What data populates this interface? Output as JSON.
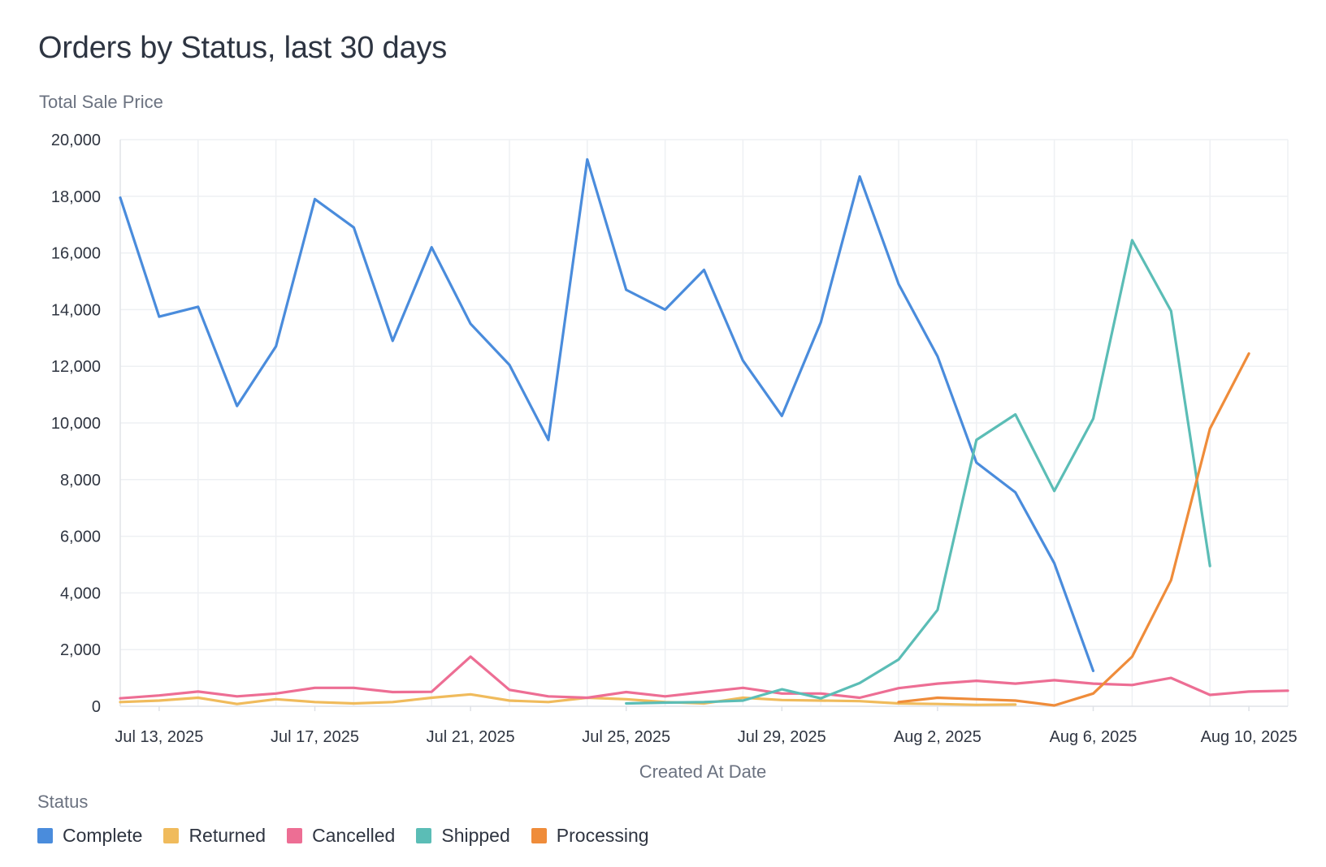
{
  "title": "Orders by Status, last 30 days",
  "legend_title": "Status",
  "chart_data": {
    "type": "line",
    "title": "Orders by Status, last 30 days",
    "ylabel": "Total Sale Price",
    "xlabel": "Created At Date",
    "ylim": [
      0,
      20000
    ],
    "yticks": [
      "0",
      "2,000",
      "4,000",
      "6,000",
      "8,000",
      "10,000",
      "12,000",
      "14,000",
      "16,000",
      "18,000",
      "20,000"
    ],
    "ytick_values": [
      0,
      2000,
      4000,
      6000,
      8000,
      10000,
      12000,
      14000,
      16000,
      18000,
      20000
    ],
    "x_dates": [
      "2025-07-12",
      "2025-07-13",
      "2025-07-14",
      "2025-07-15",
      "2025-07-16",
      "2025-07-17",
      "2025-07-18",
      "2025-07-19",
      "2025-07-20",
      "2025-07-21",
      "2025-07-22",
      "2025-07-23",
      "2025-07-24",
      "2025-07-25",
      "2025-07-26",
      "2025-07-27",
      "2025-07-28",
      "2025-07-29",
      "2025-07-30",
      "2025-07-31",
      "2025-08-01",
      "2025-08-02",
      "2025-08-03",
      "2025-08-04",
      "2025-08-05",
      "2025-08-06",
      "2025-08-07",
      "2025-08-08",
      "2025-08-09",
      "2025-08-10",
      "2025-08-11"
    ],
    "xticks": [
      {
        "date": "2025-07-13",
        "label": "Jul 13, 2025"
      },
      {
        "date": "2025-07-17",
        "label": "Jul 17, 2025"
      },
      {
        "date": "2025-07-21",
        "label": "Jul 21, 2025"
      },
      {
        "date": "2025-07-25",
        "label": "Jul 25, 2025"
      },
      {
        "date": "2025-07-29",
        "label": "Jul 29, 2025"
      },
      {
        "date": "2025-08-02",
        "label": "Aug 2, 2025"
      },
      {
        "date": "2025-08-06",
        "label": "Aug 6, 2025"
      },
      {
        "date": "2025-08-10",
        "label": "Aug 10, 2025"
      }
    ],
    "grid": true,
    "legend_position": "bottom-left",
    "series": [
      {
        "name": "Complete",
        "color": "#4a8cdc",
        "values": [
          17950,
          13750,
          14100,
          10600,
          12700,
          17900,
          16900,
          12900,
          16200,
          13500,
          12050,
          9400,
          19300,
          14700,
          14000,
          15400,
          12200,
          10250,
          13550,
          18700,
          14900,
          12350,
          8600,
          7550,
          5050,
          1250,
          null,
          null,
          null,
          null,
          null
        ]
      },
      {
        "name": "Returned",
        "color": "#f0bb5c",
        "values": [
          150,
          200,
          300,
          80,
          250,
          150,
          100,
          150,
          300,
          420,
          200,
          150,
          300,
          250,
          150,
          100,
          300,
          220,
          200,
          180,
          100,
          80,
          50,
          60,
          null,
          null,
          null,
          null,
          null,
          null,
          null
        ]
      },
      {
        "name": "Cancelled",
        "color": "#ed6e94",
        "values": [
          280,
          380,
          520,
          350,
          450,
          650,
          650,
          500,
          510,
          1750,
          580,
          350,
          300,
          500,
          350,
          500,
          650,
          450,
          450,
          300,
          640,
          800,
          900,
          800,
          920,
          800,
          750,
          1000,
          400,
          520,
          550
        ]
      },
      {
        "name": "Shipped",
        "color": "#5bbdb6",
        "values": [
          null,
          null,
          null,
          null,
          null,
          null,
          null,
          null,
          null,
          null,
          null,
          null,
          null,
          100,
          130,
          150,
          200,
          600,
          280,
          820,
          1650,
          3400,
          9400,
          10300,
          7600,
          10150,
          16450,
          13950,
          4950,
          null,
          null
        ]
      },
      {
        "name": "Processing",
        "color": "#ef8c3a",
        "values": [
          null,
          null,
          null,
          null,
          null,
          null,
          null,
          null,
          null,
          null,
          null,
          null,
          null,
          null,
          null,
          null,
          null,
          null,
          null,
          null,
          150,
          300,
          250,
          200,
          30,
          450,
          1750,
          4450,
          9800,
          12450,
          null
        ]
      }
    ]
  }
}
